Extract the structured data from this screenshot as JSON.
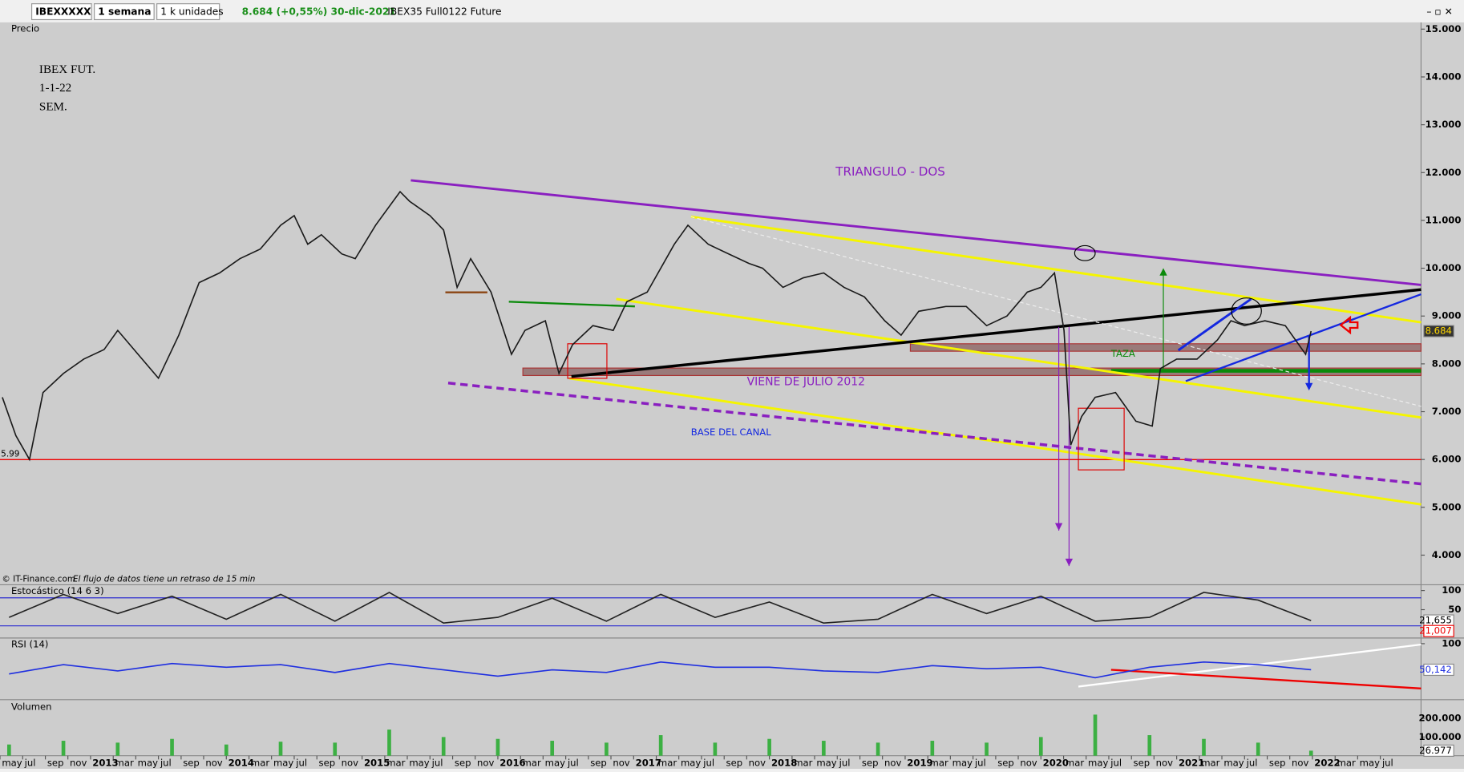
{
  "toolbar": {
    "symbol": "IBEXXXXX",
    "period": "1 semana",
    "units": "1 k unidades",
    "quote": "8.684 (+0,55%) 30-dic-2021",
    "instrument": "IBEX35 Full0122 Future"
  },
  "footer": {
    "source": "© IT-Finance.com",
    "delay": "El flujo de datos tiene un retraso de 15 min"
  },
  "chart_data": [
    {
      "type": "line",
      "title": "Precio",
      "annotations": [
        "IBEX FUT.",
        "1-1-22",
        "SEM.",
        "TRIANGULO - DOS",
        "VIENE DE JULIO 2012",
        "BASE DEL CANAL",
        "TAZA",
        "5.99"
      ],
      "x": [
        2012.35,
        2012.45,
        2012.55,
        2012.65,
        2012.8,
        2012.95,
        2013.1,
        2013.2,
        2013.35,
        2013.5,
        2013.65,
        2013.8,
        2013.95,
        2014.1,
        2014.25,
        2014.4,
        2014.5,
        2014.6,
        2014.7,
        2014.85,
        2014.95,
        2015.1,
        2015.28,
        2015.35,
        2015.5,
        2015.6,
        2015.7,
        2015.8,
        2015.95,
        2016.1,
        2016.2,
        2016.35,
        2016.45,
        2016.55,
        2016.7,
        2016.85,
        2016.95,
        2017.1,
        2017.3,
        2017.4,
        2017.55,
        2017.7,
        2017.85,
        2017.95,
        2018.1,
        2018.25,
        2018.4,
        2018.55,
        2018.7,
        2018.85,
        2018.97,
        2019.1,
        2019.3,
        2019.45,
        2019.6,
        2019.75,
        2019.9,
        2020.0,
        2020.1,
        2020.17,
        2020.22,
        2020.3,
        2020.4,
        2020.55,
        2020.7,
        2020.82,
        2020.88,
        2021.0,
        2021.15,
        2021.3,
        2021.4,
        2021.5,
        2021.65,
        2021.8,
        2021.9,
        2021.95,
        2021.99
      ],
      "series": [
        {
          "color": "#1a1a1a",
          "values": [
            7300,
            6500,
            6000,
            7400,
            7800,
            8100,
            8300,
            8700,
            8200,
            7700,
            8600,
            9700,
            9900,
            10200,
            10400,
            10900,
            11100,
            10500,
            10700,
            10300,
            10200,
            10900,
            11600,
            11400,
            11100,
            10800,
            9600,
            10200,
            9500,
            8200,
            8700,
            8900,
            7800,
            8400,
            8800,
            8700,
            9300,
            9500,
            10500,
            10900,
            10500,
            10300,
            10100,
            10000,
            9600,
            9800,
            9900,
            9600,
            9400,
            8900,
            8600,
            9100,
            9200,
            9200,
            8800,
            9000,
            9500,
            9600,
            9900,
            8700,
            6300,
            6900,
            7300,
            7400,
            6800,
            6700,
            7900,
            8100,
            8100,
            8500,
            8900,
            8800,
            8900,
            8800,
            8400,
            8200,
            8684
          ]
        }
      ],
      "last_values": [
        {
          "value": 8684,
          "label": "8.684"
        }
      ],
      "ylim": [
        3400,
        15140
      ],
      "yticks": [
        {
          "value": 4000,
          "label": "4.000"
        },
        {
          "value": 5000,
          "label": "5.000"
        },
        {
          "value": 6000,
          "label": "6.000"
        },
        {
          "value": 7000,
          "label": "7.000"
        },
        {
          "value": 8000,
          "label": "8.000"
        },
        {
          "value": 9000,
          "label": "9.000"
        },
        {
          "value": 10000,
          "label": "10.000"
        },
        {
          "value": 11000,
          "label": "11.000"
        },
        {
          "value": 12000,
          "label": "12.000"
        },
        {
          "value": 13000,
          "label": "13.000"
        },
        {
          "value": 14000,
          "label": "14.000"
        },
        {
          "value": 15000,
          "label": "15.000"
        }
      ],
      "xlim": [
        2012.333,
        2022.8
      ],
      "xticks": [
        {
          "value": 2012.333,
          "label": "may"
        },
        {
          "value": 2012.5,
          "label": "jul"
        },
        {
          "value": 2012.667,
          "label": "sep"
        },
        {
          "value": 2012.833,
          "label": "nov"
        },
        2013,
        {
          "value": 2013.167,
          "label": "mar"
        },
        {
          "value": 2013.333,
          "label": "may"
        },
        {
          "value": 2013.5,
          "label": "jul"
        },
        {
          "value": 2013.667,
          "label": "sep"
        },
        {
          "value": 2013.833,
          "label": "nov"
        },
        2014,
        {
          "value": 2014.167,
          "label": "mar"
        },
        {
          "value": 2014.333,
          "label": "may"
        },
        {
          "value": 2014.5,
          "label": "jul"
        },
        {
          "value": 2014.667,
          "label": "sep"
        },
        {
          "value": 2014.833,
          "label": "nov"
        },
        2015,
        {
          "value": 2015.167,
          "label": "mar"
        },
        {
          "value": 2015.333,
          "label": "may"
        },
        {
          "value": 2015.5,
          "label": "jul"
        },
        {
          "value": 2015.667,
          "label": "sep"
        },
        {
          "value": 2015.833,
          "label": "nov"
        },
        2016,
        {
          "value": 2016.167,
          "label": "mar"
        },
        {
          "value": 2016.333,
          "label": "may"
        },
        {
          "value": 2016.5,
          "label": "jul"
        },
        {
          "value": 2016.667,
          "label": "sep"
        },
        {
          "value": 2016.833,
          "label": "nov"
        },
        2017,
        {
          "value": 2017.167,
          "label": "mar"
        },
        {
          "value": 2017.333,
          "label": "may"
        },
        {
          "value": 2017.5,
          "label": "jul"
        },
        {
          "value": 2017.667,
          "label": "sep"
        },
        {
          "value": 2017.833,
          "label": "nov"
        },
        2018,
        {
          "value": 2018.167,
          "label": "mar"
        },
        {
          "value": 2018.333,
          "label": "may"
        },
        {
          "value": 2018.5,
          "label": "jul"
        },
        {
          "value": 2018.667,
          "label": "sep"
        },
        {
          "value": 2018.833,
          "label": "nov"
        },
        2019,
        {
          "value": 2019.167,
          "label": "mar"
        },
        {
          "value": 2019.333,
          "label": "may"
        },
        {
          "value": 2019.5,
          "label": "jul"
        },
        {
          "value": 2019.667,
          "label": "sep"
        },
        {
          "value": 2019.833,
          "label": "nov"
        },
        2020,
        {
          "value": 2020.167,
          "label": "mar"
        },
        {
          "value": 2020.333,
          "label": "may"
        },
        {
          "value": 2020.5,
          "label": "jul"
        },
        {
          "value": 2020.667,
          "label": "sep"
        },
        {
          "value": 2020.833,
          "label": "nov"
        },
        2021,
        {
          "value": 2021.167,
          "label": "mar"
        },
        {
          "value": 2021.333,
          "label": "may"
        },
        {
          "value": 2021.5,
          "label": "jul"
        },
        {
          "value": 2021.667,
          "label": "sep"
        },
        {
          "value": 2021.833,
          "label": "nov"
        },
        2022,
        {
          "value": 2022.167,
          "label": "mar"
        },
        {
          "value": 2022.333,
          "label": "may"
        },
        {
          "value": 2022.5,
          "label": "jul"
        }
      ]
    },
    {
      "type": "line",
      "title": "Estocástico (14 6 3)",
      "x": [
        2012.4,
        2012.8,
        2013.2,
        2013.6,
        2014.0,
        2014.4,
        2014.8,
        2015.2,
        2015.6,
        2016.0,
        2016.4,
        2016.8,
        2017.2,
        2017.6,
        2018.0,
        2018.4,
        2018.8,
        2019.2,
        2019.6,
        2020.0,
        2020.4,
        2020.8,
        2021.2,
        2021.6,
        2021.99
      ],
      "series": [
        {
          "color": "#222222",
          "values": [
            30,
            90,
            40,
            85,
            25,
            90,
            20,
            95,
            15,
            30,
            80,
            20,
            90,
            30,
            70,
            15,
            25,
            90,
            40,
            85,
            20,
            30,
            95,
            75,
            21.655
          ]
        }
      ],
      "last_values": [
        {
          "value": 21.655,
          "label": "21,655"
        },
        {
          "value": 21.007,
          "label": "21,007"
        }
      ],
      "ylim": [
        -24,
        115
      ],
      "yticks": [
        100,
        50
      ]
    },
    {
      "type": "line",
      "title": "RSI (14)",
      "x": [
        2012.4,
        2012.8,
        2013.2,
        2013.6,
        2014.0,
        2014.4,
        2014.8,
        2015.2,
        2015.6,
        2016.0,
        2016.4,
        2016.8,
        2017.2,
        2017.6,
        2018.0,
        2018.4,
        2018.8,
        2019.2,
        2019.6,
        2020.0,
        2020.4,
        2020.8,
        2021.2,
        2021.6,
        2021.99
      ],
      "series": [
        {
          "color": "#1f2fe0",
          "values": [
            42,
            60,
            48,
            62,
            55,
            60,
            45,
            62,
            50,
            38,
            50,
            45,
            65,
            55,
            55,
            48,
            45,
            58,
            52,
            55,
            35,
            55,
            65,
            60,
            50.142
          ]
        }
      ],
      "last_values": [
        {
          "value": 50.142,
          "label": "50,142"
        }
      ],
      "ylim": [
        -7,
        109
      ],
      "yticks": [
        100
      ]
    },
    {
      "type": "bar",
      "title": "Volumen",
      "x": [
        2012.4,
        2012.8,
        2013.2,
        2013.6,
        2014.0,
        2014.4,
        2014.8,
        2015.2,
        2015.6,
        2016.0,
        2016.4,
        2016.8,
        2017.2,
        2017.6,
        2018.0,
        2018.4,
        2018.8,
        2019.2,
        2019.6,
        2020.0,
        2020.4,
        2020.8,
        2021.2,
        2021.6,
        2021.99
      ],
      "series": [
        {
          "color": "#3cb043",
          "values": [
            60000,
            80000,
            70000,
            90000,
            60000,
            75000,
            70000,
            140000,
            100000,
            90000,
            80000,
            70000,
            110000,
            70000,
            90000,
            80000,
            70000,
            80000,
            70000,
            100000,
            220000,
            110000,
            90000,
            70000,
            26977
          ]
        }
      ],
      "last_values": [
        {
          "value": 26977,
          "label": "26.977"
        }
      ],
      "ylim": [
        0,
        295000
      ],
      "yticks": [
        {
          "value": 200000,
          "label": "200.000"
        },
        {
          "value": 100000,
          "label": "100.000"
        }
      ]
    }
  ]
}
